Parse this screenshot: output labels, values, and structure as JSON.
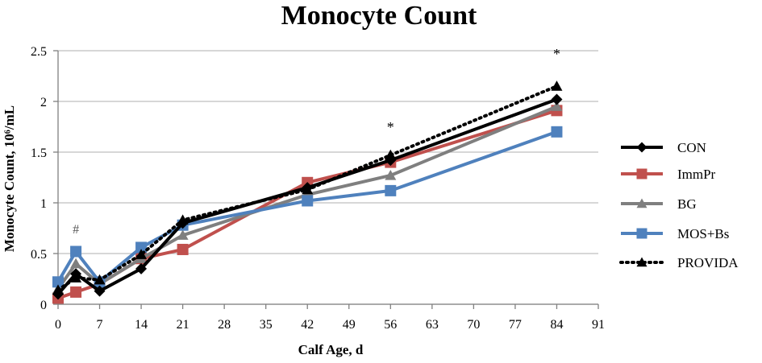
{
  "chart_data": {
    "type": "line",
    "title": "Monocyte Count",
    "xlabel": "Calf Age, d",
    "ylabel": "Monocyte Count, 10⁶/mL",
    "xlim": [
      0,
      91
    ],
    "ylim": [
      0,
      2.5
    ],
    "xticks": [
      0,
      7,
      14,
      21,
      28,
      35,
      42,
      49,
      56,
      63,
      70,
      77,
      84,
      91
    ],
    "yticks": [
      0,
      0.5,
      1,
      1.5,
      2,
      2.5
    ],
    "ytick_labels": [
      "0",
      "0.5",
      "1",
      "1.5",
      "2",
      "2.5"
    ],
    "grid": "horizontal",
    "legend_position": "right",
    "series": [
      {
        "name": "CON",
        "color": "#000000",
        "marker": "diamond",
        "dash": "solid",
        "x": [
          0,
          3,
          7,
          14,
          21,
          42,
          56,
          84
        ],
        "y": [
          0.1,
          0.3,
          0.13,
          0.35,
          0.8,
          1.15,
          1.42,
          2.02
        ]
      },
      {
        "name": "ImmPr",
        "color": "#c0504d",
        "marker": "square",
        "dash": "solid",
        "x": [
          0,
          3,
          7,
          14,
          21,
          42,
          56,
          84
        ],
        "y": [
          0.06,
          0.12,
          0.2,
          0.45,
          0.54,
          1.2,
          1.4,
          1.91
        ]
      },
      {
        "name": "BG",
        "color": "#7f7f7f",
        "marker": "triangle",
        "dash": "solid",
        "x": [
          0,
          3,
          7,
          14,
          21,
          42,
          56,
          84
        ],
        "y": [
          0.15,
          0.4,
          0.2,
          0.45,
          0.68,
          1.08,
          1.27,
          1.95
        ]
      },
      {
        "name": "MOS+Bs",
        "color": "#4f81bd",
        "marker": "square",
        "dash": "solid",
        "x": [
          0,
          3,
          7,
          14,
          21,
          42,
          56,
          84
        ],
        "y": [
          0.22,
          0.52,
          0.22,
          0.56,
          0.78,
          1.02,
          1.12,
          1.7
        ]
      },
      {
        "name": "PROVIDA",
        "color": "#000000",
        "marker": "triangle",
        "dash": "dotted",
        "x": [
          0,
          3,
          7,
          14,
          21,
          42,
          56,
          84
        ],
        "y": [
          0.14,
          0.26,
          0.24,
          0.49,
          0.83,
          1.13,
          1.47,
          2.15
        ]
      }
    ],
    "annotations": [
      {
        "text": "#",
        "x": 3,
        "y": 0.7
      },
      {
        "text": "*",
        "x": 56,
        "y": 1.7
      },
      {
        "text": "*",
        "x": 84,
        "y": 2.42
      }
    ]
  }
}
